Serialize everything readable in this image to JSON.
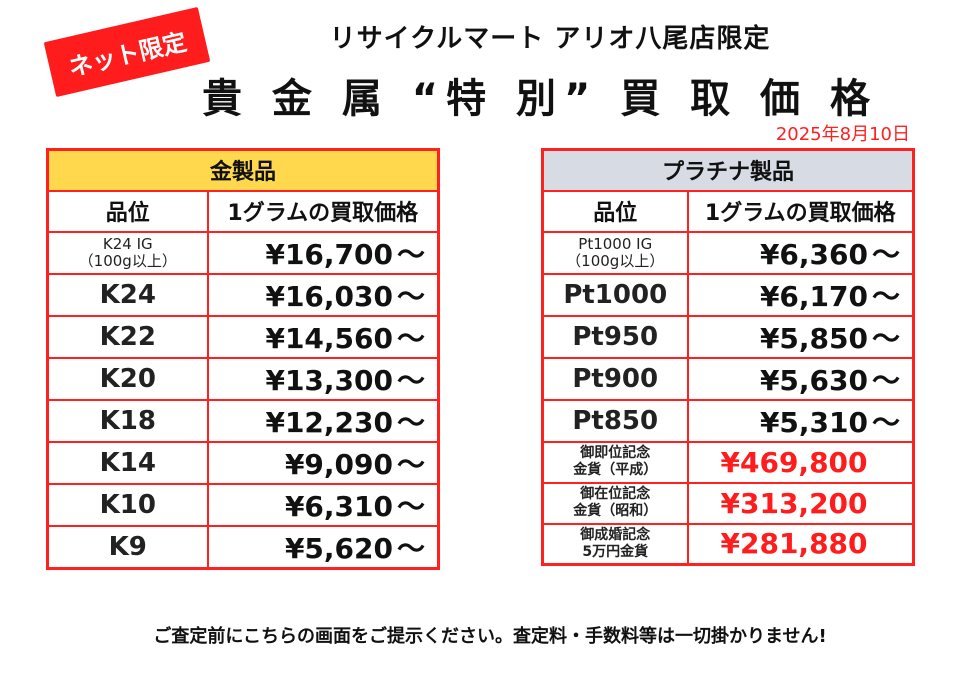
{
  "badge": "ネット限定",
  "subtitle": "リサイクルマート アリオ八尾店限定",
  "title": "貴 金 属 “特 別” 買 取 価 格",
  "date": "2025年8月10日",
  "gold": {
    "header": "金製品",
    "col_grade": "品位",
    "col_price": "1グラムの買取価格",
    "rows": [
      {
        "grade": "K24 IG",
        "grade2": "（100g以上）",
        "price": "¥16,700",
        "tilde": "～"
      },
      {
        "grade": "K24",
        "price": "¥16,030",
        "tilde": "～"
      },
      {
        "grade": "K22",
        "price": "¥14,560",
        "tilde": "～"
      },
      {
        "grade": "K20",
        "price": "¥13,300",
        "tilde": "～"
      },
      {
        "grade": "K18",
        "price": "¥12,230",
        "tilde": "～"
      },
      {
        "grade": "K14",
        "price": "¥9,090",
        "tilde": "～"
      },
      {
        "grade": "K10",
        "price": "¥6,310",
        "tilde": "～"
      },
      {
        "grade": "K9",
        "price": "¥5,620",
        "tilde": "～"
      }
    ]
  },
  "platinum": {
    "header": "プラチナ製品",
    "col_grade": "品位",
    "col_price": "1グラムの買取価格",
    "rows": [
      {
        "grade": "Pt1000 IG",
        "grade2": "（100g以上）",
        "price": "¥6,360",
        "tilde": "～"
      },
      {
        "grade": "Pt1000",
        "price": "¥6,170",
        "tilde": "～"
      },
      {
        "grade": "Pt950",
        "price": "¥5,850",
        "tilde": "～"
      },
      {
        "grade": "Pt900",
        "price": "¥5,630",
        "tilde": "～"
      },
      {
        "grade": "Pt850",
        "price": "¥5,310",
        "tilde": "～"
      }
    ],
    "coins": [
      {
        "name1": "御即位記念",
        "name2": "金貨（平成）",
        "price": "¥469,800"
      },
      {
        "name1": "御在位記念",
        "name2": "金貨（昭和）",
        "price": "¥313,200"
      },
      {
        "name1": "御成婚記念",
        "name2": "5万円金貨",
        "price": "¥281,880"
      }
    ]
  },
  "footer": "ご査定前にこちらの画面をご提示ください。査定料・手数料等は一切掛かりません!"
}
